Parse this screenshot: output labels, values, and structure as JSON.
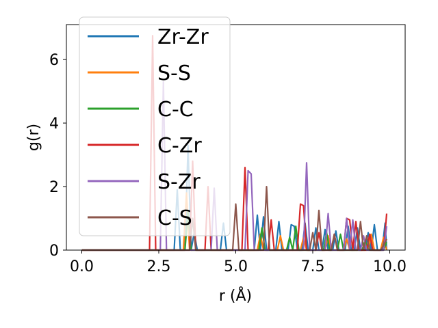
{
  "chart_data": {
    "type": "line",
    "title": "",
    "xlabel": "r (Å)",
    "ylabel": "g(r)",
    "xlim": [
      -0.5,
      10.5
    ],
    "ylim": [
      0,
      7.1
    ],
    "xticks": [
      0.0,
      2.5,
      5.0,
      7.5,
      10.0
    ],
    "xtick_labels": [
      "0.0",
      "2.5",
      "5.0",
      "7.5",
      "10.0"
    ],
    "yticks": [
      0,
      2,
      4,
      6
    ],
    "ytick_labels": [
      "0",
      "2",
      "4",
      "6"
    ],
    "grid": false,
    "legend_position": "upper-left",
    "series": [
      {
        "name": "Zr-Zr",
        "color": "#1f77b4",
        "points": [
          [
            0,
            0
          ],
          [
            3.0,
            0
          ],
          [
            3.1,
            1.9
          ],
          [
            3.2,
            0
          ],
          [
            3.35,
            0
          ],
          [
            3.45,
            3.3
          ],
          [
            3.55,
            0
          ],
          [
            3.65,
            0.55
          ],
          [
            3.75,
            0
          ],
          [
            4.5,
            0
          ],
          [
            4.6,
            0.85
          ],
          [
            4.7,
            0
          ],
          [
            5.6,
            0
          ],
          [
            5.7,
            1.1
          ],
          [
            5.8,
            0
          ],
          [
            5.9,
            1.05
          ],
          [
            6.0,
            0
          ],
          [
            6.3,
            0
          ],
          [
            6.4,
            0.9
          ],
          [
            6.5,
            0
          ],
          [
            6.7,
            0
          ],
          [
            6.8,
            0.8
          ],
          [
            6.9,
            0.75
          ],
          [
            7.0,
            0
          ],
          [
            7.15,
            0
          ],
          [
            7.25,
            0.85
          ],
          [
            7.35,
            0
          ],
          [
            7.5,
            0
          ],
          [
            7.6,
            0.7
          ],
          [
            7.7,
            0
          ],
          [
            7.8,
            0
          ],
          [
            7.9,
            0.65
          ],
          [
            8.0,
            0
          ],
          [
            8.15,
            0
          ],
          [
            8.25,
            0.6
          ],
          [
            8.35,
            0
          ],
          [
            8.55,
            0
          ],
          [
            8.65,
            0.75
          ],
          [
            8.75,
            0
          ],
          [
            8.85,
            0
          ],
          [
            8.95,
            0.7
          ],
          [
            9.05,
            0
          ],
          [
            9.2,
            0
          ],
          [
            9.3,
            0.55
          ],
          [
            9.4,
            0
          ],
          [
            9.5,
            0.8
          ],
          [
            9.6,
            0
          ],
          [
            9.75,
            0
          ],
          [
            9.85,
            0.85
          ],
          [
            9.9,
            0
          ]
        ]
      },
      {
        "name": "S-S",
        "color": "#ff7f0e",
        "points": [
          [
            0,
            0
          ],
          [
            3.3,
            0
          ],
          [
            3.4,
            1.8
          ],
          [
            3.5,
            0
          ],
          [
            5.7,
            0
          ],
          [
            5.8,
            0.5
          ],
          [
            5.9,
            0
          ],
          [
            6.35,
            0
          ],
          [
            6.45,
            0.45
          ],
          [
            6.55,
            0
          ],
          [
            7.1,
            0
          ],
          [
            7.2,
            0.4
          ],
          [
            7.3,
            0
          ],
          [
            7.9,
            0
          ],
          [
            8.0,
            0.45
          ],
          [
            8.1,
            0
          ],
          [
            8.5,
            0
          ],
          [
            8.6,
            0.35
          ],
          [
            8.7,
            0
          ],
          [
            9.3,
            0
          ],
          [
            9.4,
            0.5
          ],
          [
            9.5,
            0
          ],
          [
            9.7,
            0
          ],
          [
            9.8,
            0.4
          ],
          [
            9.9,
            0
          ]
        ]
      },
      {
        "name": "C-C",
        "color": "#2ca02c",
        "points": [
          [
            0,
            0
          ],
          [
            3.35,
            0
          ],
          [
            3.45,
            1.2
          ],
          [
            3.55,
            0
          ],
          [
            5.75,
            0
          ],
          [
            5.85,
            0.7
          ],
          [
            5.95,
            0
          ],
          [
            6.65,
            0
          ],
          [
            6.75,
            0.4
          ],
          [
            6.85,
            0
          ],
          [
            6.95,
            0.75
          ],
          [
            7.05,
            0
          ],
          [
            7.85,
            0
          ],
          [
            7.95,
            0.55
          ],
          [
            8.05,
            0
          ],
          [
            8.3,
            0
          ],
          [
            8.4,
            0.5
          ],
          [
            8.5,
            0
          ],
          [
            9.1,
            0
          ],
          [
            9.2,
            0.3
          ],
          [
            9.3,
            0
          ],
          [
            9.8,
            0
          ],
          [
            9.9,
            0.25
          ]
        ]
      },
      {
        "name": "C-Zr",
        "color": "#d62728",
        "points": [
          [
            0,
            0
          ],
          [
            2.2,
            0
          ],
          [
            2.3,
            6.75
          ],
          [
            2.4,
            0
          ],
          [
            3.5,
            0
          ],
          [
            3.6,
            2.8
          ],
          [
            3.7,
            0
          ],
          [
            4.0,
            0
          ],
          [
            4.1,
            2.0
          ],
          [
            4.2,
            0
          ],
          [
            5.2,
            0
          ],
          [
            5.3,
            2.6
          ],
          [
            5.4,
            0
          ],
          [
            6.05,
            0
          ],
          [
            6.15,
            0.95
          ],
          [
            6.25,
            0
          ],
          [
            7.0,
            0
          ],
          [
            7.1,
            1.45
          ],
          [
            7.2,
            1.4
          ],
          [
            7.3,
            0
          ],
          [
            7.6,
            0
          ],
          [
            7.7,
            0.55
          ],
          [
            7.8,
            0
          ],
          [
            8.1,
            0
          ],
          [
            8.2,
            0.5
          ],
          [
            8.3,
            0
          ],
          [
            8.5,
            0
          ],
          [
            8.6,
            1.0
          ],
          [
            8.7,
            0.95
          ],
          [
            8.8,
            0
          ],
          [
            8.9,
            0.9
          ],
          [
            9.0,
            0
          ],
          [
            9.25,
            0
          ],
          [
            9.35,
            0.5
          ],
          [
            9.45,
            0
          ],
          [
            9.8,
            0
          ],
          [
            9.9,
            1.15
          ]
        ]
      },
      {
        "name": "S-Zr",
        "color": "#9467bd",
        "points": [
          [
            0,
            0
          ],
          [
            2.55,
            0
          ],
          [
            2.65,
            5.3
          ],
          [
            2.75,
            0
          ],
          [
            4.2,
            0
          ],
          [
            4.3,
            1.95
          ],
          [
            4.4,
            0
          ],
          [
            5.3,
            0
          ],
          [
            5.4,
            2.5
          ],
          [
            5.5,
            2.4
          ],
          [
            5.6,
            0
          ],
          [
            7.2,
            0
          ],
          [
            7.3,
            2.75
          ],
          [
            7.4,
            0
          ],
          [
            7.9,
            0
          ],
          [
            8.0,
            1.15
          ],
          [
            8.1,
            0
          ],
          [
            8.5,
            0
          ],
          [
            8.6,
            1.0
          ],
          [
            8.7,
            0
          ],
          [
            8.8,
            0.95
          ],
          [
            8.9,
            0
          ],
          [
            9.05,
            0
          ],
          [
            9.15,
            0.45
          ],
          [
            9.25,
            0
          ],
          [
            9.8,
            0
          ],
          [
            9.9,
            0.75
          ]
        ]
      },
      {
        "name": "C-S",
        "color": "#8c564b",
        "points": [
          [
            0,
            0
          ],
          [
            3.5,
            0
          ],
          [
            3.6,
            1.0
          ],
          [
            3.7,
            0
          ],
          [
            4.9,
            0
          ],
          [
            5.0,
            1.45
          ],
          [
            5.1,
            0
          ],
          [
            5.9,
            0
          ],
          [
            6.0,
            2.0
          ],
          [
            6.1,
            0
          ],
          [
            7.4,
            0
          ],
          [
            7.5,
            0.55
          ],
          [
            7.6,
            0
          ],
          [
            7.7,
            1.25
          ],
          [
            7.8,
            0
          ],
          [
            8.1,
            0
          ],
          [
            8.2,
            0.5
          ],
          [
            8.3,
            0
          ],
          [
            8.95,
            0
          ],
          [
            9.05,
            0.9
          ],
          [
            9.15,
            0
          ],
          [
            9.25,
            0.45
          ],
          [
            9.35,
            0
          ],
          [
            9.7,
            0
          ],
          [
            9.8,
            0.15
          ],
          [
            9.9,
            0.35
          ]
        ]
      }
    ]
  }
}
